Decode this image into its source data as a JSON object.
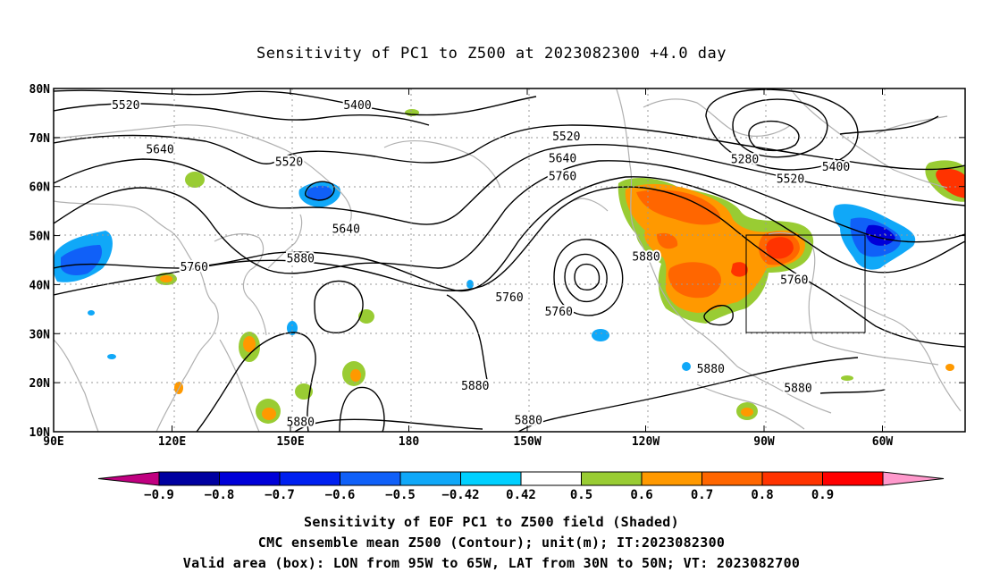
{
  "title": "Sensitivity of PC1 to Z500 at 2023082300 +4.0 day",
  "map": {
    "lat_labels": [
      "80N",
      "70N",
      "60N",
      "50N",
      "40N",
      "30N",
      "20N",
      "10N"
    ],
    "lon_labels": [
      "90E",
      "120E",
      "150E",
      "180",
      "150W",
      "120W",
      "90W",
      "60W"
    ],
    "contour_labels": [
      {
        "text": "5520",
        "lon": 109,
        "lat": 76.5
      },
      {
        "text": "5400",
        "lon": 170,
        "lat": 76.5
      },
      {
        "text": "5640",
        "lon": 118,
        "lat": 67.5
      },
      {
        "text": "5520",
        "lon": 152,
        "lat": 65
      },
      {
        "text": "5520",
        "lon": -135,
        "lat": 70.2
      },
      {
        "text": "5640",
        "lon": -136,
        "lat": 65.7
      },
      {
        "text": "5760",
        "lon": -136,
        "lat": 62
      },
      {
        "text": "5280",
        "lon": -88,
        "lat": 65.5
      },
      {
        "text": "5400",
        "lon": -64,
        "lat": 64
      },
      {
        "text": "5520",
        "lon": -76,
        "lat": 61.5
      },
      {
        "text": "5640",
        "lon": 167,
        "lat": 51.3
      },
      {
        "text": "5760",
        "lon": 127,
        "lat": 43.5
      },
      {
        "text": "5880",
        "lon": 155,
        "lat": 45.3
      },
      {
        "text": "5760",
        "lon": -150,
        "lat": 37.3
      },
      {
        "text": "5760",
        "lon": -137,
        "lat": 34.4
      },
      {
        "text": "5880",
        "lon": -114,
        "lat": 45.6
      },
      {
        "text": "5760",
        "lon": -75,
        "lat": 40.9
      },
      {
        "text": "5880",
        "lon": -97,
        "lat": 22.8
      },
      {
        "text": "5880",
        "lon": -159,
        "lat": 19.3
      },
      {
        "text": "5880",
        "lon": -74,
        "lat": 18.8
      },
      {
        "text": "5880",
        "lon": -145,
        "lat": 12.3
      },
      {
        "text": "5880",
        "lon": 155,
        "lat": 11.9
      }
    ],
    "contour_color": "#000000",
    "coast_color": "#b0b0b0",
    "grid": "dotted",
    "valid_box": {
      "lon_from": -95,
      "lon_to": -65,
      "lat_from": 30,
      "lat_to": 50
    }
  },
  "colorbar": {
    "labels": [
      "-0.9",
      "-0.8",
      "-0.7",
      "-0.6",
      "-0.5",
      "-0.42",
      "0.42",
      "0.5",
      "0.6",
      "0.7",
      "0.8",
      "0.9"
    ],
    "colors": [
      "#0000a0",
      "#0000d8",
      "#0020f0",
      "#1060f8",
      "#10a8f8",
      "#00d0ff",
      "#ffffff",
      "#99cc33",
      "#ff9900",
      "#ff6600",
      "#ff3300",
      "#ff0000"
    ],
    "low_end_color": "#c00080",
    "high_end_color": "#ff99cc"
  },
  "captions": {
    "line1": "Sensitivity of EOF PC1 to Z500 field (Shaded)",
    "line2": "CMC ensemble mean Z500 (Contour); unit(m); IT:2023082300",
    "line3": "Valid area (box): LON from 95W to 65W, LAT from 30N to 50N; VT: 2023082700"
  }
}
